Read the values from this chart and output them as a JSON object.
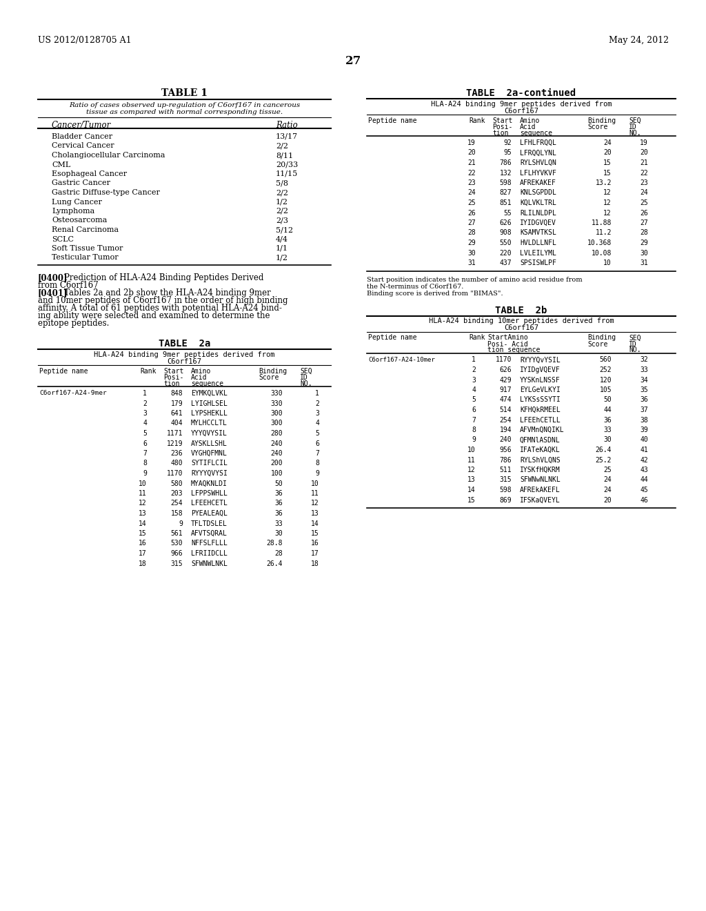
{
  "header_left": "US 2012/0128705 A1",
  "header_right": "May 24, 2012",
  "page_number": "27",
  "table1_title": "TABLE 1",
  "table1_subtitle1": "Ratio of cases observed up-regulation of C6orf167 in cancerous",
  "table1_subtitle2": "tissue as compared with normal corresponding tissue.",
  "table1_col1": "Cancer/Tumor",
  "table1_col2": "Ratio",
  "table1_data": [
    [
      "Bladder Cancer",
      "13/17"
    ],
    [
      "Cervical Cancer",
      "2/2"
    ],
    [
      "Cholangiocellular Carcinoma",
      "8/11"
    ],
    [
      "CML",
      "20/33"
    ],
    [
      "Esophageal Cancer",
      "11/15"
    ],
    [
      "Gastric Cancer",
      "5/8"
    ],
    [
      "Gastric Diffuse-type Cancer",
      "2/2"
    ],
    [
      "Lung Cancer",
      "1/2"
    ],
    [
      "Lymphoma",
      "2/2"
    ],
    [
      "Osteosarcoma",
      "2/3"
    ],
    [
      "Renal Carcinoma",
      "5/12"
    ],
    [
      "SCLC",
      "4/4"
    ],
    [
      "Soft Tissue Tumor",
      "1/1"
    ],
    [
      "Testicular Tumor",
      "1/2"
    ]
  ],
  "table2a_title": "TABLE  2a",
  "table2a_subtitle1": "HLA-A24 binding 9mer peptides derived from",
  "table2a_subtitle2": "C6orf167",
  "table2a_data": [
    [
      "C6orf167-A24-9mer",
      "1",
      "848",
      "EYMKQLVKL",
      "330",
      "1"
    ],
    [
      "",
      "2",
      "179",
      "LYIGHLSEL",
      "330",
      "2"
    ],
    [
      "",
      "3",
      "641",
      "LYPSHEKLL",
      "300",
      "3"
    ],
    [
      "",
      "4",
      "404",
      "MYLHCCLTL",
      "300",
      "4"
    ],
    [
      "",
      "5",
      "1171",
      "YYYQVYSIL",
      "280",
      "5"
    ],
    [
      "",
      "6",
      "1219",
      "AYSKLLSHL",
      "240",
      "6"
    ],
    [
      "",
      "7",
      "236",
      "VYGHQFMNL",
      "240",
      "7"
    ],
    [
      "",
      "8",
      "480",
      "SYTIFLCIL",
      "200",
      "8"
    ],
    [
      "",
      "9",
      "1170",
      "RYYYQVYSI",
      "100",
      "9"
    ],
    [
      "",
      "10",
      "580",
      "MYAQKNLDI",
      "50",
      "10"
    ],
    [
      "",
      "11",
      "203",
      "LFPPSWHLL",
      "36",
      "11"
    ],
    [
      "",
      "12",
      "254",
      "LFEEHCETL",
      "36",
      "12"
    ],
    [
      "",
      "13",
      "158",
      "PYEALEAQL",
      "36",
      "13"
    ],
    [
      "",
      "14",
      "9",
      "TFLTDSLEL",
      "33",
      "14"
    ],
    [
      "",
      "15",
      "561",
      "AFVTSQRAL",
      "30",
      "15"
    ],
    [
      "",
      "16",
      "530",
      "NFFSLFLLL",
      "28.8",
      "16"
    ],
    [
      "",
      "17",
      "966",
      "LFRIIDCLL",
      "28",
      "17"
    ],
    [
      "",
      "18",
      "315",
      "SFWNWLNKL",
      "26.4",
      "18"
    ]
  ],
  "table2a_cont_title": "TABLE  2a-continued",
  "table2a_cont_subtitle1": "HLA-A24 binding 9mer peptides derived from",
  "table2a_cont_subtitle2": "C6orf167",
  "table2a_cont_data": [
    [
      "",
      "19",
      "92",
      "LFHLFRQQL",
      "24",
      "19"
    ],
    [
      "",
      "20",
      "95",
      "LFRQQLYNL",
      "20",
      "20"
    ],
    [
      "",
      "21",
      "786",
      "RYLSHVLQN",
      "15",
      "21"
    ],
    [
      "",
      "22",
      "132",
      "LFLHYVKVF",
      "15",
      "22"
    ],
    [
      "",
      "23",
      "598",
      "AFREKAKEF",
      "13.2",
      "23"
    ],
    [
      "",
      "24",
      "827",
      "KNLSGPDDL",
      "12",
      "24"
    ],
    [
      "",
      "25",
      "851",
      "KQLVKLTRL",
      "12",
      "25"
    ],
    [
      "",
      "26",
      "55",
      "RLILNLDPL",
      "12",
      "26"
    ],
    [
      "",
      "27",
      "626",
      "IYIDGVQEV",
      "11.88",
      "27"
    ],
    [
      "",
      "28",
      "908",
      "KSAMVTKSL",
      "11.2",
      "28"
    ],
    [
      "",
      "29",
      "550",
      "HVLDLLNFL",
      "10.368",
      "29"
    ],
    [
      "",
      "30",
      "220",
      "LVLEILYML",
      "10.08",
      "30"
    ],
    [
      "",
      "31",
      "437",
      "SPSISWLPF",
      "10",
      "31"
    ]
  ],
  "table2a_note1": "Start position indicates the number of amino acid residue from",
  "table2a_note2": "the N-terminus of C6orf167.",
  "table2a_note3": "Binding score is derived from \"BIMAS\".",
  "table2b_title": "TABLE  2b",
  "table2b_subtitle1": "HLA-A24 binding 10mer peptides derived from",
  "table2b_subtitle2": "C6orf167",
  "table2b_data": [
    [
      "C6orf167-A24-10mer",
      "1",
      "1170",
      "RYYYQvYSIL",
      "560",
      "32"
    ],
    [
      "",
      "2",
      "626",
      "IYIDgVQEVF",
      "252",
      "33"
    ],
    [
      "",
      "3",
      "429",
      "YYSKnLNSSF",
      "120",
      "34"
    ],
    [
      "",
      "4",
      "917",
      "EYLGeVLKYI",
      "105",
      "35"
    ],
    [
      "",
      "5",
      "474",
      "LYKSsSSYTI",
      "50",
      "36"
    ],
    [
      "",
      "6",
      "514",
      "KFHQkRMEEL",
      "44",
      "37"
    ],
    [
      "",
      "7",
      "254",
      "LFEEhCETLL",
      "36",
      "38"
    ],
    [
      "",
      "8",
      "194",
      "AFVMnQNQIKL",
      "33",
      "39"
    ],
    [
      "",
      "9",
      "240",
      "QFMNlASDNL",
      "30",
      "40"
    ],
    [
      "",
      "10",
      "956",
      "IFATeKAQKL",
      "26.4",
      "41"
    ],
    [
      "",
      "11",
      "786",
      "RYLShVLQNS",
      "25.2",
      "42"
    ],
    [
      "",
      "12",
      "511",
      "IYSKfHQKRM",
      "25",
      "43"
    ],
    [
      "",
      "13",
      "315",
      "SFWNwNLNKL",
      "24",
      "44"
    ],
    [
      "",
      "14",
      "598",
      "AFREkAKEFL",
      "24",
      "45"
    ],
    [
      "",
      "15",
      "869",
      "IFSKaQVEYL",
      "20",
      "46"
    ]
  ]
}
